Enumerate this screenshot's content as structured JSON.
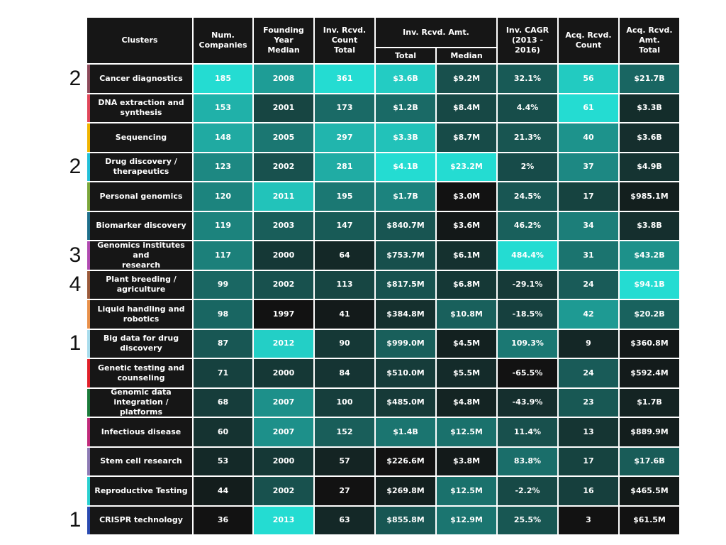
{
  "chart_data": {
    "type": "heatmap",
    "header": {
      "clusters": "Clusters",
      "num_companies": "Num.\nCompanies",
      "founding": "Founding\nYear Median",
      "inv_count": "Inv. Rcvd.\nCount\nTotal",
      "inv_amt_group": "Inv. Rcvd. Amt.",
      "inv_amt_total": "Total",
      "inv_amt_median": "Median",
      "cagr": "Inv. CAGR\n(2013 - 2016)",
      "acq_count": "Acq. Rcvd.\nCount",
      "acq_amt": "Acq. Rcvd.\nAmt.\nTotal"
    },
    "columns": [
      "num_companies",
      "founding",
      "inv_count",
      "inv_total",
      "inv_median",
      "cagr",
      "acq_count",
      "acq_amt"
    ],
    "rows": [
      {
        "cluster": "Cancer diagnostics",
        "note": "2",
        "stripe": "#8c4a5a",
        "num": "185",
        "num_v": 185,
        "year": "2008",
        "year_v": 2008,
        "invc": "361",
        "invc_v": 361,
        "invt": "$3.6B",
        "invt_v": 3600,
        "invm": "$9.2M",
        "invm_v": 9.2,
        "cagr": "32.1%",
        "cagr_v": 32.1,
        "acqc": "56",
        "acqc_v": 56,
        "acqa": "$21.7B",
        "acqa_v": 21700
      },
      {
        "cluster": "DNA extraction and\nsynthesis",
        "note": "",
        "stripe": "#e0475a",
        "num": "153",
        "num_v": 153,
        "year": "2001",
        "year_v": 2001,
        "invc": "173",
        "invc_v": 173,
        "invt": "$1.2B",
        "invt_v": 1200,
        "invm": "$8.4M",
        "invm_v": 8.4,
        "cagr": "4.4%",
        "cagr_v": 4.4,
        "acqc": "61",
        "acqc_v": 61,
        "acqa": "$3.3B",
        "acqa_v": 3300
      },
      {
        "cluster": "Sequencing",
        "note": "",
        "stripe": "#f0b400",
        "num": "148",
        "num_v": 148,
        "year": "2005",
        "year_v": 2005,
        "invc": "297",
        "invc_v": 297,
        "invt": "$3.3B",
        "invt_v": 3300,
        "invm": "$8.7M",
        "invm_v": 8.7,
        "cagr": "21.3%",
        "cagr_v": 21.3,
        "acqc": "40",
        "acqc_v": 40,
        "acqa": "$3.6B",
        "acqa_v": 3600
      },
      {
        "cluster": "Drug discovery /\ntherapeutics",
        "note": "2",
        "stripe": "#22c0d8",
        "num": "123",
        "num_v": 123,
        "year": "2002",
        "year_v": 2002,
        "invc": "281",
        "invc_v": 281,
        "invt": "$4.1B",
        "invt_v": 4100,
        "invm": "$23.2M",
        "invm_v": 23.2,
        "cagr": "2%",
        "cagr_v": 2,
        "acqc": "37",
        "acqc_v": 37,
        "acqa": "$4.9B",
        "acqa_v": 4900
      },
      {
        "cluster": "Personal genomics",
        "note": "",
        "stripe": "#7aa63a",
        "num": "120",
        "num_v": 120,
        "year": "2011",
        "year_v": 2011,
        "invc": "195",
        "invc_v": 195,
        "invt": "$1.7B",
        "invt_v": 1700,
        "invm": "$3.0M",
        "invm_v": 3.0,
        "cagr": "24.5%",
        "cagr_v": 24.5,
        "acqc": "17",
        "acqc_v": 17,
        "acqa": "$985.1M",
        "acqa_v": 985.1
      },
      {
        "cluster": "Biomarker discovery",
        "note": "",
        "stripe": "#1f6f8b",
        "num": "119",
        "num_v": 119,
        "year": "2003",
        "year_v": 2003,
        "invc": "147",
        "invc_v": 147,
        "invt": "$840.7M",
        "invt_v": 840.7,
        "invm": "$3.6M",
        "invm_v": 3.6,
        "cagr": "46.2%",
        "cagr_v": 46.2,
        "acqc": "34",
        "acqc_v": 34,
        "acqa": "$3.8B",
        "acqa_v": 3800
      },
      {
        "cluster": "Genomics institutes and\nresearch",
        "note": "3",
        "stripe": "#b04ab0",
        "num": "117",
        "num_v": 117,
        "year": "2000",
        "year_v": 2000,
        "invc": "64",
        "invc_v": 64,
        "invt": "$753.7M",
        "invt_v": 753.7,
        "invm": "$6.1M",
        "invm_v": 6.1,
        "cagr": "484.4%",
        "cagr_v": 484.4,
        "acqc": "31",
        "acqc_v": 31,
        "acqa": "$43.2B",
        "acqa_v": 43200
      },
      {
        "cluster": "Plant breeding /\nagriculture",
        "note": "4",
        "stripe": "#9a5a3a",
        "num": "99",
        "num_v": 99,
        "year": "2002",
        "year_v": 2002,
        "invc": "113",
        "invc_v": 113,
        "invt": "$817.5M",
        "invt_v": 817.5,
        "invm": "$6.8M",
        "invm_v": 6.8,
        "cagr": "-29.1%",
        "cagr_v": -29.1,
        "acqc": "24",
        "acqc_v": 24,
        "acqa": "$94.1B",
        "acqa_v": 94100
      },
      {
        "cluster": "Liquid handling and\nrobotics",
        "note": "",
        "stripe": "#e8904a",
        "num": "98",
        "num_v": 98,
        "year": "1997",
        "year_v": 1997,
        "invc": "41",
        "invc_v": 41,
        "invt": "$384.8M",
        "invt_v": 384.8,
        "invm": "$10.8M",
        "invm_v": 10.8,
        "cagr": "-18.5%",
        "cagr_v": -18.5,
        "acqc": "42",
        "acqc_v": 42,
        "acqa": "$20.2B",
        "acqa_v": 20200
      },
      {
        "cluster": "Big data for drug\ndiscovery",
        "note": "1",
        "stripe": "#a8dcec",
        "num": "87",
        "num_v": 87,
        "year": "2012",
        "year_v": 2012,
        "invc": "90",
        "invc_v": 90,
        "invt": "$999.0M",
        "invt_v": 999.0,
        "invm": "$4.5M",
        "invm_v": 4.5,
        "cagr": "109.3%",
        "cagr_v": 109.3,
        "acqc": "9",
        "acqc_v": 9,
        "acqa": "$360.8M",
        "acqa_v": 360.8
      },
      {
        "cluster": "Genetic testing and\ncounseling",
        "note": "",
        "stripe": "#e0202a",
        "num": "71",
        "num_v": 71,
        "year": "2000",
        "year_v": 2000,
        "invc": "84",
        "invc_v": 84,
        "invt": "$510.0M",
        "invt_v": 510.0,
        "invm": "$5.5M",
        "invm_v": 5.5,
        "cagr": "-65.5%",
        "cagr_v": -65.5,
        "acqc": "24",
        "acqc_v": 24,
        "acqa": "$592.4M",
        "acqa_v": 592.4
      },
      {
        "cluster": "Genomic data\nintegration / platforms",
        "note": "",
        "stripe": "#1a7a3a",
        "num": "68",
        "num_v": 68,
        "year": "2007",
        "year_v": 2007,
        "invc": "100",
        "invc_v": 100,
        "invt": "$485.0M",
        "invt_v": 485.0,
        "invm": "$4.8M",
        "invm_v": 4.8,
        "cagr": "-43.9%",
        "cagr_v": -43.9,
        "acqc": "23",
        "acqc_v": 23,
        "acqa": "$1.7B",
        "acqa_v": 1700
      },
      {
        "cluster": "Infectious disease",
        "note": "",
        "stripe": "#c02a7a",
        "num": "60",
        "num_v": 60,
        "year": "2007",
        "year_v": 2007,
        "invc": "152",
        "invc_v": 152,
        "invt": "$1.4B",
        "invt_v": 1400,
        "invm": "$12.5M",
        "invm_v": 12.5,
        "cagr": "11.4%",
        "cagr_v": 11.4,
        "acqc": "13",
        "acqc_v": 13,
        "acqa": "$889.9M",
        "acqa_v": 889.9
      },
      {
        "cluster": "Stem cell research",
        "note": "",
        "stripe": "#8c7ab4",
        "num": "53",
        "num_v": 53,
        "year": "2000",
        "year_v": 2000,
        "invc": "57",
        "invc_v": 57,
        "invt": "$226.6M",
        "invt_v": 226.6,
        "invm": "$3.8M",
        "invm_v": 3.8,
        "cagr": "83.8%",
        "cagr_v": 83.8,
        "acqc": "17",
        "acqc_v": 17,
        "acqa": "$17.6B",
        "acqa_v": 17600
      },
      {
        "cluster": "Reproductive Testing",
        "note": "",
        "stripe": "#2ad0d0",
        "num": "44",
        "num_v": 44,
        "year": "2002",
        "year_v": 2002,
        "invc": "27",
        "invc_v": 27,
        "invt": "$269.8M",
        "invt_v": 269.8,
        "invm": "$12.5M",
        "invm_v": 12.5,
        "cagr": "-2.2%",
        "cagr_v": -2.2,
        "acqc": "16",
        "acqc_v": 16,
        "acqa": "$465.5M",
        "acqa_v": 465.5
      },
      {
        "cluster": "CRISPR technology",
        "note": "1",
        "stripe": "#2a4ab0",
        "num": "36",
        "num_v": 36,
        "year": "2013",
        "year_v": 2013,
        "invc": "63",
        "invc_v": 63,
        "invt": "$855.8M",
        "invt_v": 855.8,
        "invm": "$12.9M",
        "invm_v": 12.9,
        "cagr": "25.5%",
        "cagr_v": 25.5,
        "acqc": "3",
        "acqc_v": 3,
        "acqa": "$61.5M",
        "acqa_v": 61.5
      }
    ],
    "colors": {
      "low": "#121212",
      "high": "#24dcd2",
      "header": "#161616"
    }
  }
}
